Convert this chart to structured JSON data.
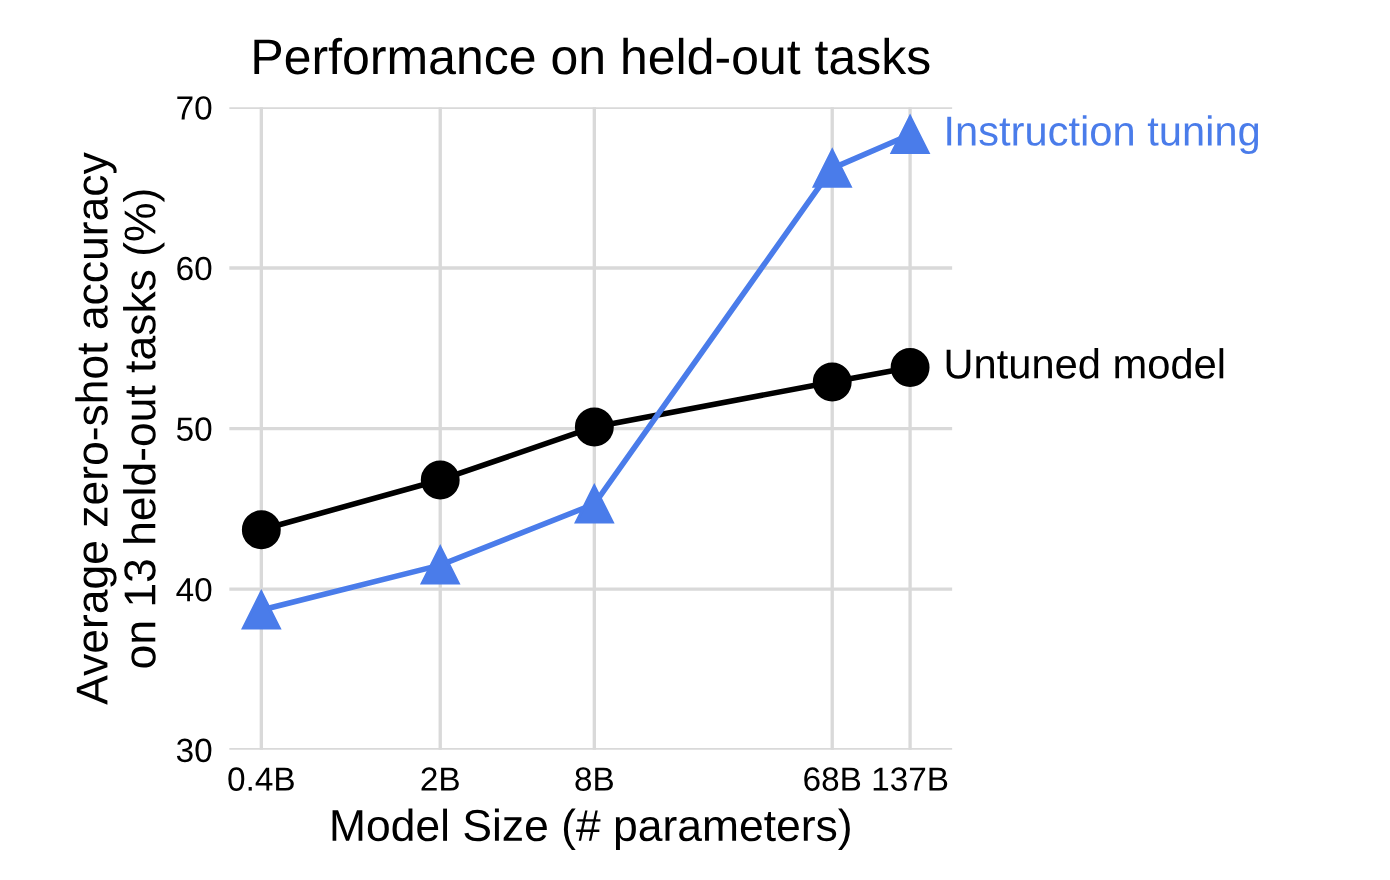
{
  "chart_data": {
    "type": "line",
    "title": "Performance on held-out tasks",
    "xlabel": "Model Size (# parameters)",
    "ylabel": "Average zero-shot accuracy\non 13 held-out tasks (%)",
    "x": [
      0.4,
      2,
      8,
      68,
      137
    ],
    "series": [
      {
        "name": "Untuned model",
        "color": "#000000",
        "marker": "circle",
        "values": [
          43.7,
          46.8,
          50.1,
          52.9,
          53.8
        ]
      },
      {
        "name": "Instruction tuning",
        "color": "#4a7cea",
        "marker": "triangle",
        "values": [
          38.7,
          41.5,
          45.3,
          66.2,
          68.3
        ]
      }
    ],
    "log": "x",
    "xlim": [
      0.3,
      200
    ],
    "xticks": [
      {
        "value": 0.4,
        "label": "0.4B"
      },
      {
        "value": 2,
        "label": "2B"
      },
      {
        "value": 8,
        "label": "8B"
      },
      {
        "value": 68,
        "label": "68B"
      },
      {
        "value": 137,
        "label": "137B"
      }
    ],
    "ylim": [
      30,
      70
    ],
    "yticks": [
      30,
      40,
      50,
      60,
      70
    ],
    "grid": true,
    "legend": false
  }
}
